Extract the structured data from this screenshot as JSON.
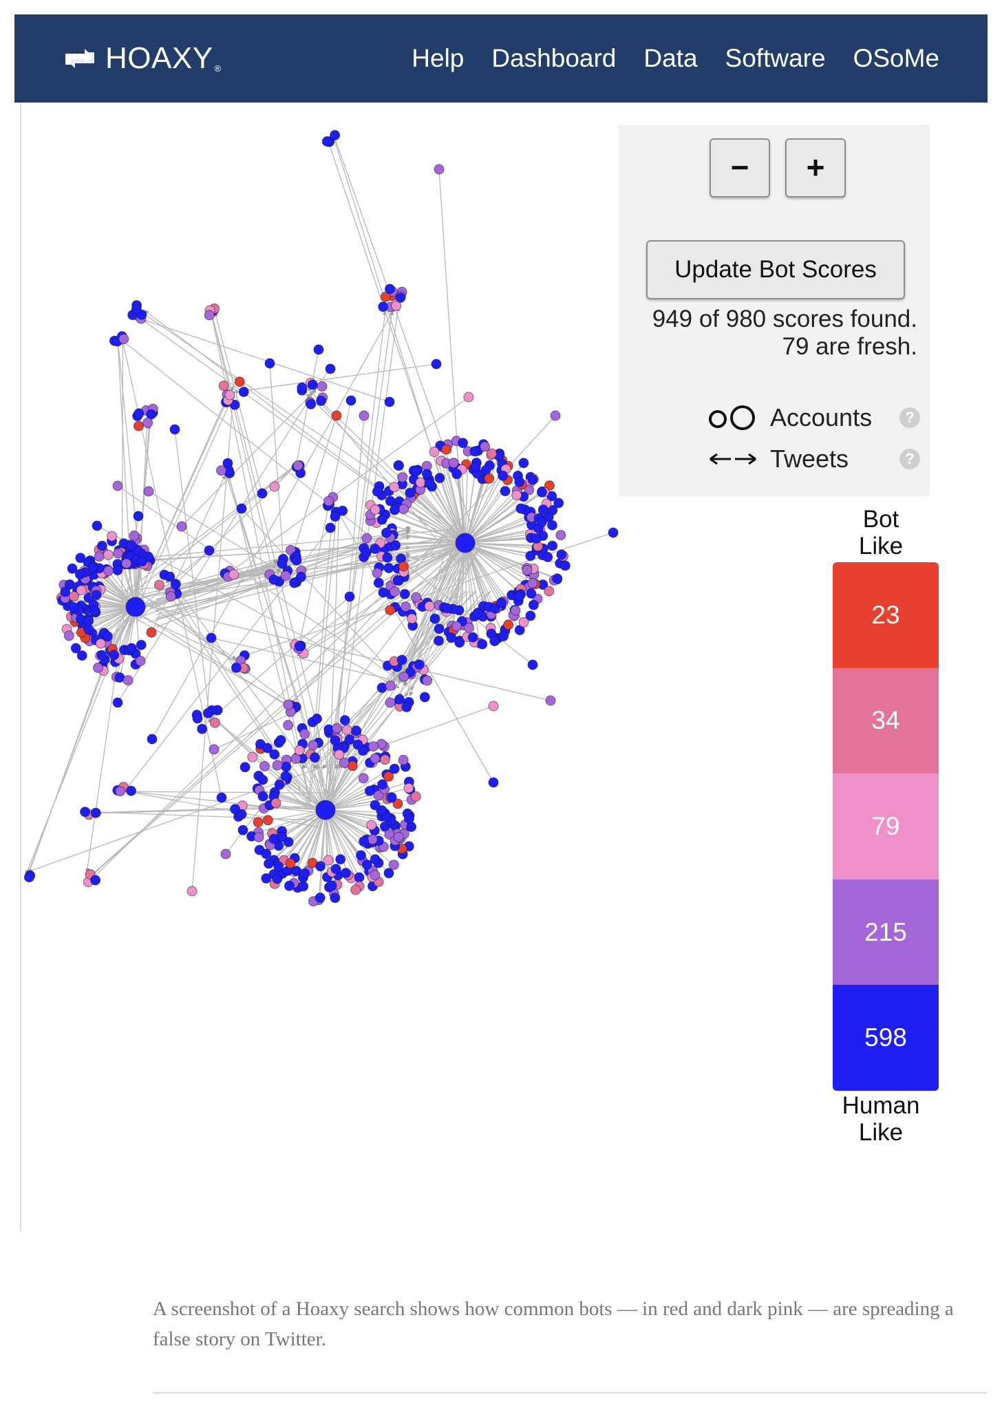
{
  "navbar": {
    "brand": "HOAXY",
    "brand_mark": "®",
    "logo_icon": "retweet-icon",
    "links": [
      "Help",
      "Dashboard",
      "Data",
      "Software",
      "OSoMe"
    ],
    "background": "#233d6b"
  },
  "controls": {
    "zoom_out_label": "−",
    "zoom_in_label": "+",
    "update_label": "Update Bot Scores",
    "scores_found": "949 of 980 scores found.",
    "scores_fresh": "79 are fresh.",
    "legend_accounts": "Accounts",
    "legend_tweets": "Tweets",
    "help_glyph": "?"
  },
  "scale": {
    "top_line1": "Bot",
    "top_line2": "Like",
    "bottom_line1": "Human",
    "bottom_line2": "Like",
    "segments": [
      {
        "count": "23",
        "color": "#e8402e"
      },
      {
        "count": "34",
        "color": "#e4739b"
      },
      {
        "count": "79",
        "color": "#ef91c9"
      },
      {
        "count": "215",
        "color": "#a466d9"
      },
      {
        "count": "598",
        "color": "#1e1ef5"
      }
    ]
  },
  "graph": {
    "node_colors": [
      "#e8402e",
      "#e4739b",
      "#ef91c9",
      "#a466d9",
      "#1e1ef5"
    ],
    "edge_color": "#b8b8b8"
  },
  "caption": "A screenshot of a Hoaxy search shows how common bots — in red and dark pink — are spreading a false story on Twitter."
}
